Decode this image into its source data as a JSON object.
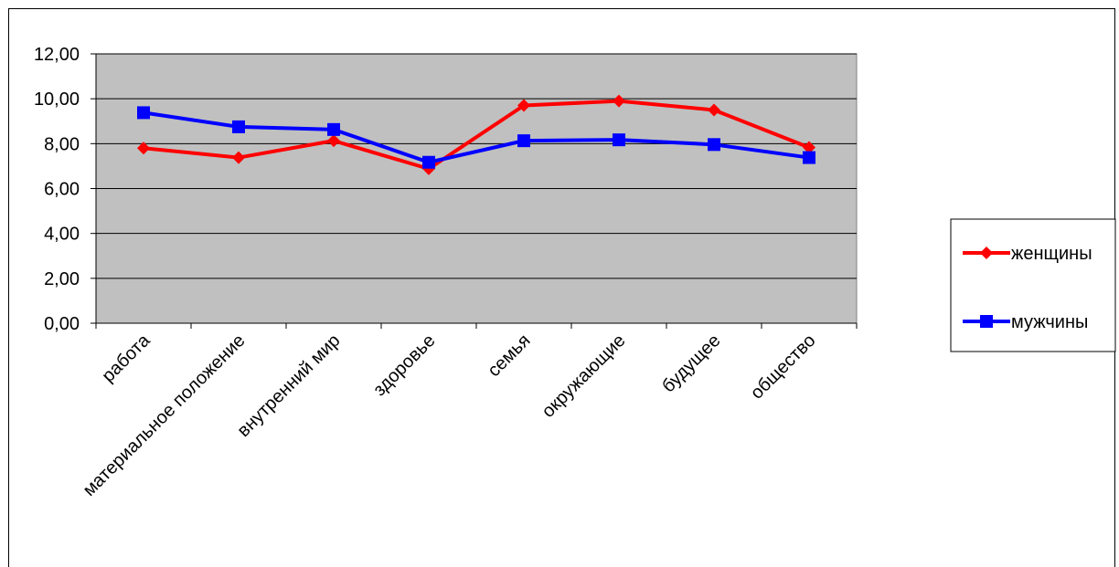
{
  "chart_data": {
    "type": "line",
    "categories": [
      "работа",
      "материальное положение",
      "внутренний мир",
      "здоровье",
      "семья",
      "окружающие",
      "будущее",
      "общество"
    ],
    "series": [
      {
        "name": "женщины",
        "values": [
          7.8,
          7.38,
          8.13,
          6.88,
          9.7,
          9.9,
          9.5,
          7.83
        ],
        "color": "#ff0000",
        "marker": "diamond"
      },
      {
        "name": "мужчины",
        "values": [
          9.38,
          8.75,
          8.63,
          7.17,
          8.13,
          8.17,
          7.96,
          7.38
        ],
        "color": "#0000ff",
        "marker": "square"
      }
    ],
    "y_ticks": [
      "0,00",
      "2,00",
      "4,00",
      "6,00",
      "8,00",
      "10,00",
      "12,00"
    ],
    "ylim": [
      0,
      12
    ],
    "grid": true,
    "plot_background": "#c0c0c0",
    "legend_position": "right",
    "title": "",
    "xlabel": "",
    "ylabel": ""
  }
}
